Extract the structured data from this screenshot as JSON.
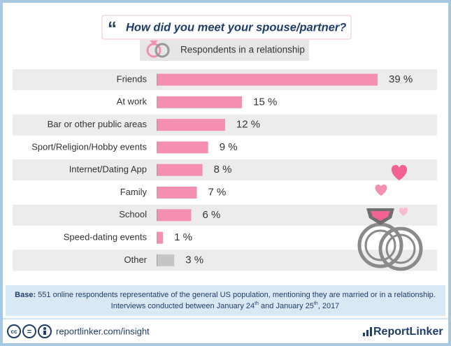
{
  "chart_data": {
    "type": "bar",
    "orientation": "horizontal",
    "title": "How did you meet your spouse/partner?",
    "subtitle": "Respondents in a relationship",
    "categories": [
      "Friends",
      "At work",
      "Bar or other public areas",
      "Sport/Religion/Hobby events",
      "Internet/Dating App",
      "Family",
      "School",
      "Speed-dating events",
      "Other"
    ],
    "values": [
      39,
      15,
      12,
      9,
      8,
      7,
      6,
      1,
      3
    ],
    "value_labels": [
      "39 %",
      "15 %",
      "12 %",
      "9 %",
      "8 %",
      "7 %",
      "6 %",
      "1 %",
      "3 %"
    ],
    "colors": [
      "#f48fb1",
      "#f48fb1",
      "#f48fb1",
      "#f48fb1",
      "#f48fb1",
      "#f48fb1",
      "#f48fb1",
      "#f48fb1",
      "#c6c6c6"
    ]
  },
  "footer": {
    "base_label": "Base:",
    "base_text": " 551 online respondents representative of the general US population, mentioning they are married or in a relationship.",
    "interviews": [
      "Interviews conducted between January 24",
      "th",
      " and January 25",
      "th",
      ", 2017"
    ]
  },
  "bottom": {
    "license_icons": [
      "cc",
      "="
    ],
    "link": "reportlinker.com/insight",
    "logo": "ReportLinker"
  }
}
